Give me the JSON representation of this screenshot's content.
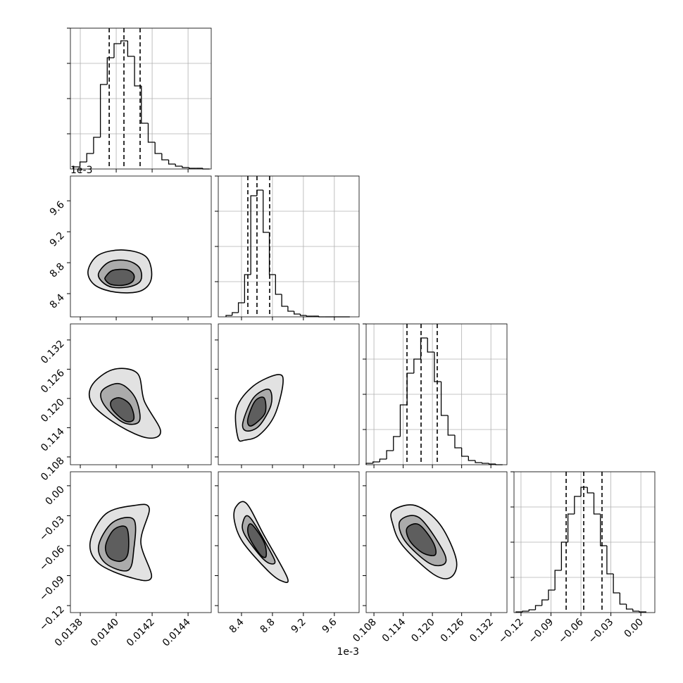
{
  "chart_data": {
    "type": "corner",
    "hist_ylim": [
      0,
      200
    ],
    "hist_yticks": [
      50,
      100,
      150,
      200
    ],
    "line_color": "#000000",
    "grid_color": "#b0b0b0",
    "contour_fills": [
      "#e2e2e2",
      "#ababab",
      "#5e5e5e"
    ],
    "parameters": [
      {
        "lim": [
          0.013745,
          0.014529
        ],
        "ticks": [
          0.0138,
          {
            "value": 0.014,
            "label": "0.0140"
          },
          0.0142,
          0.0144
        ],
        "bins": [
          0.01376,
          0.013798,
          0.013836,
          0.013874,
          0.013912,
          0.01395,
          0.013988,
          0.014026,
          0.014064,
          0.014102,
          0.01414,
          0.014178,
          0.014216,
          0.014254,
          0.014292,
          0.01433,
          0.014368,
          0.014406,
          0.014444,
          0.014482,
          0.01452
        ],
        "counts": [
          3,
          10,
          22,
          45,
          120,
          158,
          178,
          182,
          160,
          118,
          65,
          38,
          22,
          13,
          7,
          4,
          2,
          1,
          1,
          0
        ],
        "quantiles": [
          0.013961,
          0.014043,
          0.014133
        ],
        "joint": []
      },
      {
        "lim": [
          8.1,
          9.92
        ],
        "ticks": [
          8.4,
          8.8,
          9.2,
          9.6
        ],
        "offset_text": "1e-3",
        "bins": [
          8.2,
          8.28,
          8.36,
          8.44,
          8.52,
          8.6,
          8.68,
          8.76,
          8.84,
          8.92,
          9.0,
          9.08,
          9.16,
          9.24,
          9.32,
          9.4,
          9.48,
          9.56,
          9.64,
          9.72,
          9.8
        ],
        "counts": [
          2,
          6,
          20,
          60,
          172,
          180,
          120,
          60,
          32,
          15,
          8,
          4,
          2,
          1,
          1,
          0,
          0,
          0,
          0,
          0
        ],
        "quantiles": [
          8.482,
          8.6,
          8.764
        ],
        "joint": [
          {
            "contours": [
              {
                "x": [
                  0.013843,
                  0.013902,
                  0.014039,
                  0.014168,
                  0.014196,
                  0.014137,
                  0.014,
                  0.013882
                ],
                "y": [
                  8.691,
                  8.9,
                  8.964,
                  8.873,
                  8.6,
                  8.436,
                  8.418,
                  8.509
                ]
              },
              {
                "x": [
                  0.013902,
                  0.013961,
                  0.014059,
                  0.014129,
                  0.014137,
                  0.014078,
                  0.01398,
                  0.013921
                ],
                "y": [
                  8.664,
                  8.809,
                  8.827,
                  8.736,
                  8.573,
                  8.491,
                  8.482,
                  8.555
                ]
              },
              {
                "x": [
                  0.013941,
                  0.01398,
                  0.014059,
                  0.014098,
                  0.01409,
                  0.014039,
                  0.013972,
                  0.013941
                ],
                "y": [
                  8.618,
                  8.7,
                  8.709,
                  8.645,
                  8.555,
                  8.509,
                  8.518,
                  8.573
                ]
              }
            ]
          }
        ]
      },
      {
        "lim": [
          0.1064,
          0.1353
        ],
        "ticks": [
          0.108,
          0.114,
          {
            "value": 0.12,
            "label": "0.120"
          },
          0.126,
          0.132
        ],
        "bins": [
          0.1064,
          0.1078,
          0.1092,
          0.1106,
          0.112,
          0.1134,
          0.1148,
          0.1162,
          0.1176,
          0.119,
          0.1204,
          0.1218,
          0.1232,
          0.1246,
          0.126,
          0.1274,
          0.1288,
          0.1302,
          0.1316,
          0.133,
          0.1344
        ],
        "counts": [
          2,
          4,
          8,
          20,
          40,
          85,
          130,
          150,
          180,
          160,
          118,
          70,
          42,
          24,
          12,
          6,
          3,
          2,
          1,
          0
        ],
        "quantiles": [
          0.11478,
          0.11767,
          0.12099
        ],
        "joint": [
          {
            "contours": [
              {
                "x": [
                  0.013863,
                  0.01398,
                  0.014117,
                  0.014157,
                  0.014247,
                  0.014176,
                  0.014019,
                  0.01387
                ],
                "y": [
                  0.12258,
                  0.12591,
                  0.12519,
                  0.11941,
                  0.11334,
                  0.11189,
                  0.11435,
                  0.11868
                ]
              },
              {
                "x": [
                  0.013921,
                  0.014019,
                  0.014106,
                  0.014129,
                  0.014039,
                  0.013933
                ],
                "y": [
                  0.12157,
                  0.12302,
                  0.12013,
                  0.11536,
                  0.11507,
                  0.11868
                ]
              },
              {
                "x": [
                  0.013972,
                  0.014019,
                  0.014078,
                  0.014098,
                  0.014051,
                  0.01398
                ],
                "y": [
                  0.11941,
                  0.12013,
                  0.11868,
                  0.11579,
                  0.11536,
                  0.11767
                ]
              }
            ]
          },
          {
            "contours": [
              {
                "x": [
                  8.355,
                  8.336,
                  8.555,
                  8.873,
                  8.936,
                  8.827,
                  8.627,
                  8.445
                ],
                "y": [
                  0.11189,
                  0.11796,
                  0.12258,
                  0.1249,
                  0.12302,
                  0.11652,
                  0.11247,
                  0.11146
                ]
              },
              {
                "x": [
                  8.418,
                  8.555,
                  8.755,
                  8.782,
                  8.627,
                  8.464
                ],
                "y": [
                  0.11507,
                  0.12013,
                  0.12186,
                  0.11868,
                  0.11435,
                  0.11334
                ]
              },
              {
                "x": [
                  8.482,
                  8.573,
                  8.691,
                  8.709,
                  8.609,
                  8.509
                ],
                "y": [
                  0.11579,
                  0.11941,
                  0.12013,
                  0.11723,
                  0.11522,
                  0.11435
                ]
              }
            ]
          }
        ]
      },
      {
        "lim": [
          -0.127,
          0.014
        ],
        "ticks": [
          {
            "value": -0.12,
            "label": "−0.12"
          },
          {
            "value": -0.09,
            "label": "−0.09"
          },
          {
            "value": -0.06,
            "label": "−0.06"
          },
          {
            "value": -0.03,
            "label": "−0.03"
          },
          {
            "value": 0,
            "label": "0.00"
          }
        ],
        "bins": [
          -0.125,
          -0.1185,
          -0.112,
          -0.1055,
          -0.099,
          -0.0925,
          -0.086,
          -0.0795,
          -0.073,
          -0.0665,
          -0.06,
          -0.0535,
          -0.047,
          -0.0405,
          -0.034,
          -0.0275,
          -0.021,
          -0.0145,
          -0.008,
          -0.0015,
          0.005
        ],
        "counts": [
          1,
          2,
          4,
          10,
          18,
          32,
          60,
          100,
          140,
          165,
          178,
          170,
          140,
          95,
          55,
          28,
          12,
          5,
          2,
          1
        ],
        "quantiles": [
          -0.0748,
          -0.0572,
          -0.0389
        ],
        "joint": [
          {
            "contours": [
              {
                "x": [
                  0.013855,
                  0.013941,
                  0.014098,
                  0.014184,
                  0.014137,
                  0.014196,
                  0.014078,
                  0.013902
                ],
                "y": [
                  -0.0565,
                  -0.0283,
                  -0.0198,
                  -0.0227,
                  -0.0565,
                  -0.0918,
                  -0.0918,
                  -0.0777
                ]
              },
              {
                "x": [
                  0.013902,
                  0.01398,
                  0.014098,
                  0.014098,
                  0.014066,
                  0.013941
                ],
                "y": [
                  -0.06,
                  -0.0368,
                  -0.0339,
                  -0.0635,
                  -0.0847,
                  -0.0777
                ]
              },
              {
                "x": [
                  0.013941,
                  0.013988,
                  0.014059,
                  0.014066,
                  0.014027,
                  0.013961
                ],
                "y": [
                  -0.06,
                  -0.0438,
                  -0.0424,
                  -0.0671,
                  -0.0755,
                  -0.072
                ]
              }
            ]
          },
          {
            "contours": [
              {
                "x": [
                  8.327,
                  8.464,
                  8.691,
                  8.991,
                  8.918,
                  8.736,
                  8.418,
                  8.309
                ],
                "y": [
                  -0.0213,
                  -0.0177,
                  -0.0495,
                  -0.0918,
                  -0.0953,
                  -0.0847,
                  -0.0565,
                  -0.0354
                ]
              },
              {
                "x": [
                  8.418,
                  8.509,
                  8.782,
                  8.827,
                  8.691,
                  8.445
                ],
                "y": [
                  -0.0368,
                  -0.0318,
                  -0.0671,
                  -0.0777,
                  -0.0741,
                  -0.0495
                ]
              },
              {
                "x": [
                  8.482,
                  8.536,
                  8.691,
                  8.718,
                  8.645,
                  8.509
                ],
                "y": [
                  -0.0424,
                  -0.0389,
                  -0.0565,
                  -0.0706,
                  -0.0692,
                  -0.053
                ]
              }
            ]
          },
          {
            "contours": [
              {
                "x": [
                  0.11189,
                  0.11652,
                  0.12157,
                  0.1249,
                  0.12374,
                  0.12013,
                  0.11391,
                  0.11189
                ],
                "y": [
                  -0.0248,
                  -0.0198,
                  -0.0389,
                  -0.0741,
                  -0.0918,
                  -0.0883,
                  -0.06,
                  -0.0389
                ]
              },
              {
                "x": [
                  0.11334,
                  0.11724,
                  0.12201,
                  0.12258,
                  0.11941,
                  0.11435
                ],
                "y": [
                  -0.0354,
                  -0.0318,
                  -0.0635,
                  -0.0777,
                  -0.0777,
                  -0.0551
                ]
              },
              {
                "x": [
                  0.11478,
                  0.11724,
                  0.12013,
                  0.12056,
                  0.11796,
                  0.11536
                ],
                "y": [
                  -0.0424,
                  -0.0389,
                  -0.0565,
                  -0.0692,
                  -0.0671,
                  -0.0551
                ]
              }
            ]
          }
        ]
      }
    ]
  }
}
